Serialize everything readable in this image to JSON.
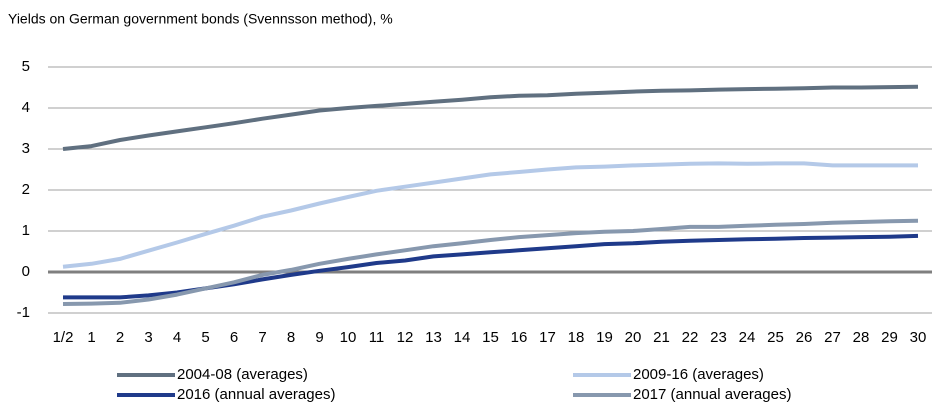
{
  "chart_data": {
    "type": "line",
    "title": "Yields on German government bonds (Svennsson method), %",
    "categories": [
      "1/2",
      "1",
      "2",
      "3",
      "4",
      "5",
      "6",
      "7",
      "8",
      "9",
      "10",
      "11",
      "12",
      "13",
      "14",
      "15",
      "16",
      "17",
      "18",
      "19",
      "20",
      "21",
      "22",
      "23",
      "24",
      "25",
      "26",
      "27",
      "28",
      "29",
      "30"
    ],
    "series": [
      {
        "name": "2004-08 (averages)",
        "color": "#607080",
        "values": [
          3.0,
          3.07,
          3.22,
          3.33,
          3.43,
          3.53,
          3.63,
          3.74,
          3.84,
          3.94,
          4.0,
          4.05,
          4.1,
          4.15,
          4.2,
          4.26,
          4.3,
          4.31,
          4.35,
          4.37,
          4.4,
          4.42,
          4.43,
          4.45,
          4.46,
          4.47,
          4.48,
          4.5,
          4.5,
          4.51,
          4.52
        ]
      },
      {
        "name": "2009-16 (averages)",
        "color": "#b4c9e8",
        "values": [
          0.13,
          0.2,
          0.32,
          0.52,
          0.72,
          0.93,
          1.13,
          1.35,
          1.5,
          1.67,
          1.83,
          1.98,
          2.08,
          2.18,
          2.28,
          2.38,
          2.44,
          2.5,
          2.55,
          2.57,
          2.6,
          2.62,
          2.64,
          2.65,
          2.64,
          2.65,
          2.65,
          2.6,
          2.6,
          2.6,
          2.6
        ]
      },
      {
        "name": "2016 (annual averages)",
        "color": "#1f3a8a",
        "values": [
          -0.62,
          -0.62,
          -0.62,
          -0.57,
          -0.5,
          -0.4,
          -0.3,
          -0.18,
          -0.07,
          0.03,
          0.12,
          0.22,
          0.28,
          0.38,
          0.43,
          0.48,
          0.53,
          0.58,
          0.63,
          0.68,
          0.7,
          0.74,
          0.76,
          0.78,
          0.8,
          0.81,
          0.83,
          0.84,
          0.85,
          0.86,
          0.88
        ]
      },
      {
        "name": "2017 (annual averages)",
        "color": "#8798ae",
        "values": [
          -0.78,
          -0.77,
          -0.75,
          -0.67,
          -0.55,
          -0.4,
          -0.25,
          -0.07,
          0.05,
          0.2,
          0.32,
          0.43,
          0.53,
          0.63,
          0.7,
          0.78,
          0.85,
          0.9,
          0.95,
          0.98,
          1.0,
          1.05,
          1.1,
          1.1,
          1.13,
          1.15,
          1.17,
          1.2,
          1.22,
          1.24,
          1.25
        ]
      }
    ],
    "ylim": [
      -1,
      5
    ],
    "yticks": [
      -1,
      0,
      1,
      2,
      3,
      4,
      5
    ],
    "grid": true,
    "legend": "bottom"
  }
}
